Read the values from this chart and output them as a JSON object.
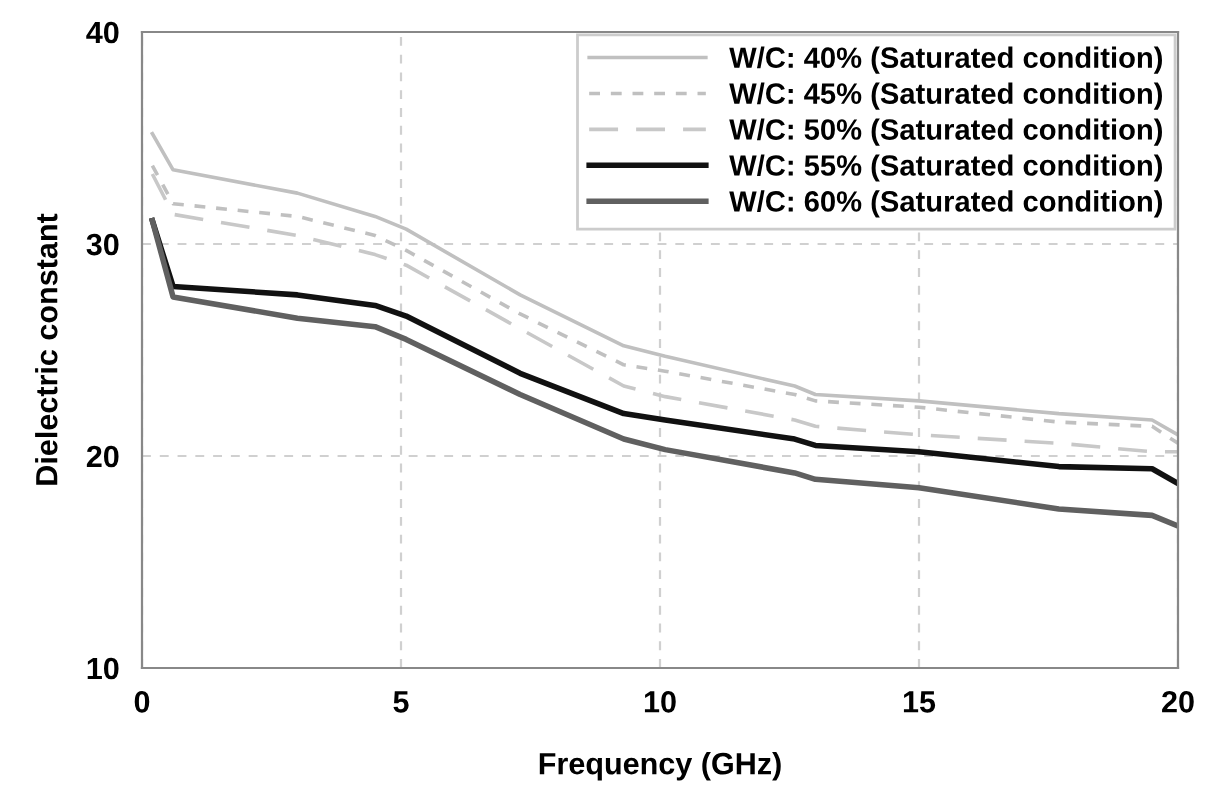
{
  "chart_data": {
    "type": "line",
    "xlabel": "Frequency (GHz)",
    "ylabel": "Dielectric constant",
    "x": [
      0.2,
      0.6,
      3,
      4.5,
      5.1,
      7.3,
      9.3,
      10.1,
      12.6,
      13,
      15,
      17.7,
      19.5,
      20
    ],
    "series": [
      {
        "name": "W/C: 40% (Saturated condition)",
        "color": "#c0c0c0",
        "line_style": "solid",
        "values": [
          35.2,
          33.5,
          32.4,
          31.3,
          30.7,
          27.6,
          25.2,
          24.7,
          23.3,
          22.9,
          22.6,
          22.0,
          21.7,
          21.0
        ]
      },
      {
        "name": "W/C: 45% (Saturated condition)",
        "color": "#c0c0c0",
        "line_style": "dotted",
        "values": [
          33.7,
          31.9,
          31.3,
          30.4,
          29.7,
          26.7,
          24.3,
          24.0,
          22.9,
          22.6,
          22.3,
          21.6,
          21.4,
          20.6
        ]
      },
      {
        "name": "W/C: 50% (Saturated condition)",
        "color": "#c8c8c8",
        "line_style": "dashed",
        "values": [
          33.3,
          31.4,
          30.4,
          29.5,
          29.0,
          26.0,
          23.3,
          22.8,
          21.7,
          21.4,
          21.0,
          20.6,
          20.2,
          20.2
        ]
      },
      {
        "name": "W/C: 55% (Saturated condition)",
        "color": "#111111",
        "line_style": "solid",
        "values": [
          31.1,
          28.0,
          27.6,
          27.1,
          26.6,
          23.9,
          22.0,
          21.7,
          20.8,
          20.5,
          20.2,
          19.5,
          19.4,
          18.7
        ]
      },
      {
        "name": "W/C: 60% (Saturated condition)",
        "color": "#606060",
        "line_style": "solid",
        "values": [
          31.1,
          27.5,
          26.5,
          26.1,
          25.5,
          22.9,
          20.8,
          20.3,
          19.2,
          18.9,
          18.5,
          17.5,
          17.2,
          16.7
        ]
      }
    ],
    "xlim": [
      0,
      20
    ],
    "xticks": [
      0,
      5,
      10,
      15,
      20
    ],
    "ylim": [
      10,
      40
    ],
    "yticks": [
      10,
      20,
      30,
      40
    ],
    "grid": true,
    "legend": "top right",
    "marker": "none"
  }
}
